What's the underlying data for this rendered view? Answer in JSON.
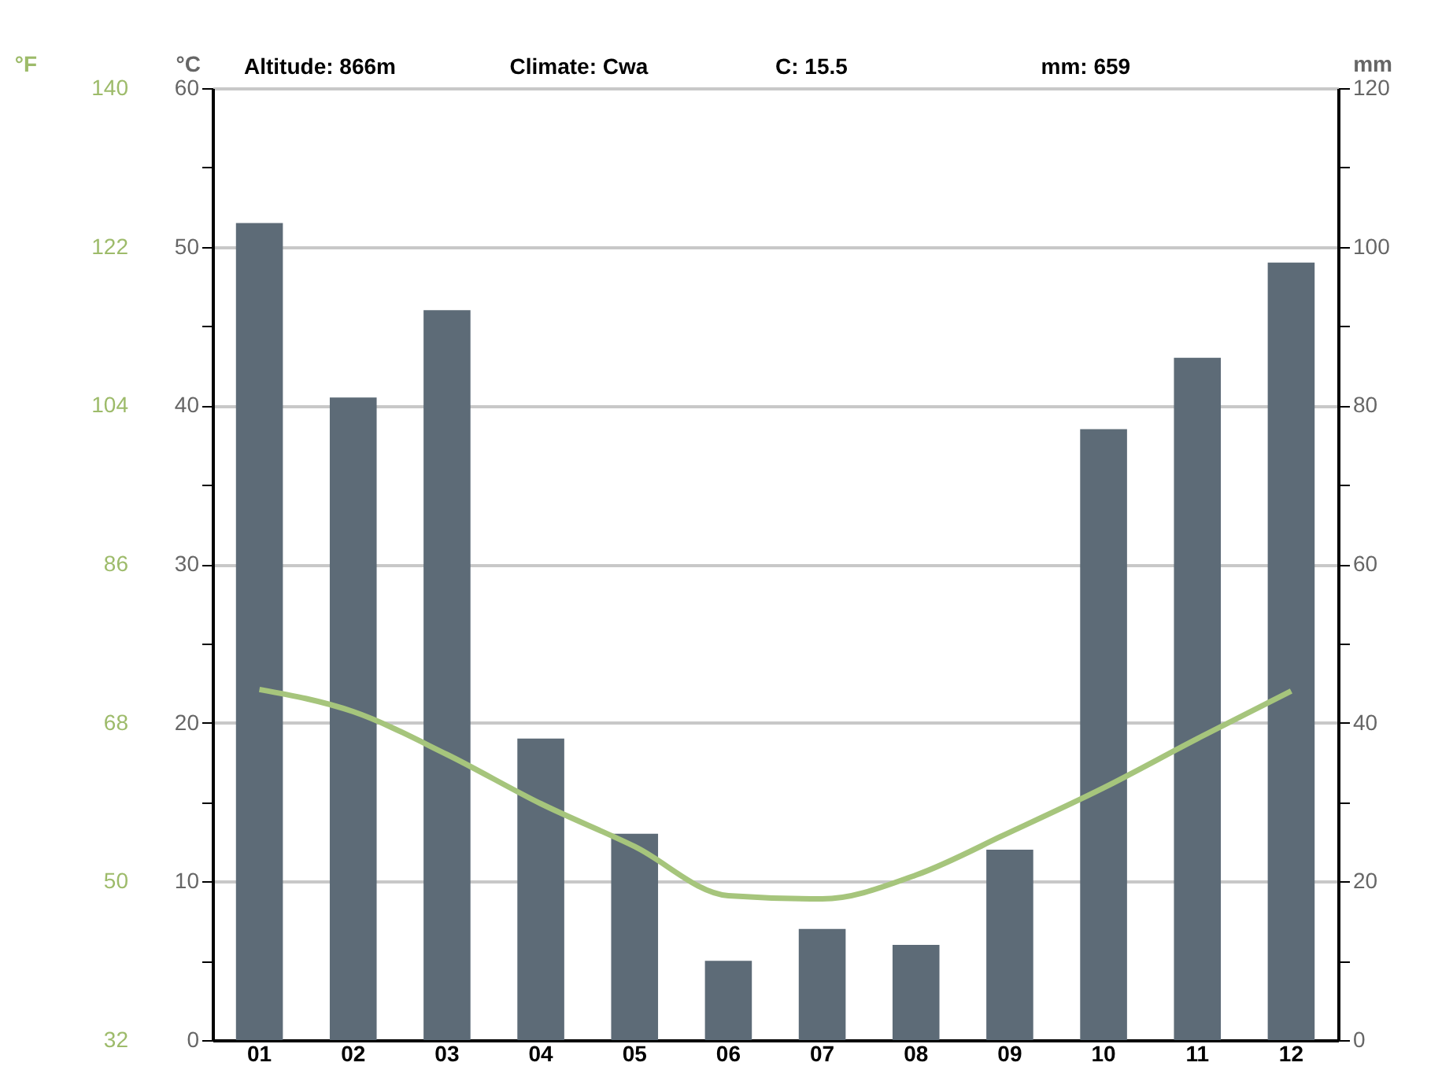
{
  "chart_data": {
    "type": "bar",
    "categories": [
      "01",
      "02",
      "03",
      "04",
      "05",
      "06",
      "07",
      "08",
      "09",
      "10",
      "11",
      "12"
    ],
    "series": [
      {
        "axis": "y2",
        "color": "#5d6b77",
        "values": [
          103,
          81,
          92,
          38,
          26,
          10,
          14,
          12,
          24,
          77,
          86,
          98
        ]
      },
      {
        "type": "line",
        "color": "#a6c57c",
        "values": [
          22.1,
          20.7,
          18.0,
          14.9,
          12.2,
          9.1,
          8.9,
          10.4,
          13.1,
          15.9,
          19.0,
          22.0
        ]
      }
    ],
    "ylabel": "°C",
    "y2label": "mm",
    "y3label": "°F",
    "ylim": [
      0,
      60
    ],
    "yticks": [
      0,
      {
        "value": 5,
        "label": null
      },
      10,
      {
        "value": 15,
        "label": null
      },
      20,
      {
        "value": 25,
        "label": null
      },
      30,
      {
        "value": 35,
        "label": null
      },
      40,
      {
        "value": 45,
        "label": null
      },
      50,
      {
        "value": 55,
        "label": null
      },
      60
    ],
    "y2lim": [
      0,
      120
    ],
    "y2ticks": [
      0,
      {
        "value": 10,
        "label": null
      },
      20,
      {
        "value": 30,
        "label": null
      },
      40,
      {
        "value": 50,
        "label": null
      },
      60,
      {
        "value": 70,
        "label": null
      },
      80,
      {
        "value": 90,
        "label": null
      },
      100,
      {
        "value": 110,
        "label": null
      },
      120
    ],
    "y3lim": [
      32,
      140
    ],
    "y3ticks": [
      32,
      50,
      68,
      86,
      104,
      122,
      140
    ],
    "grid": "y",
    "annotations": [
      "Altitude: 866m",
      "Climate: Cwa",
      "C:  15.5",
      "mm: 659"
    ]
  }
}
